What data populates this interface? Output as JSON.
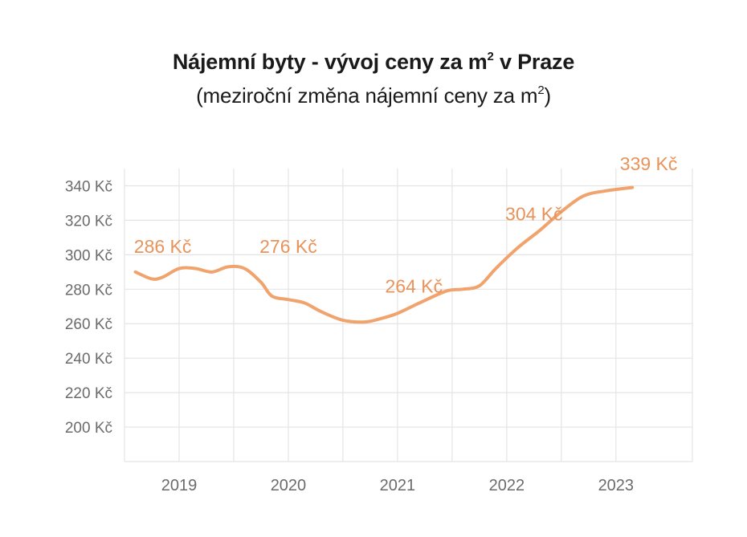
{
  "header": {
    "title_main": "Nájemní byty - vývoj ceny za m",
    "title_sup": "2",
    "title_tail": " v Praze",
    "subtitle_main": "(meziroční změna nájemní ceny za m",
    "subtitle_sup": "2",
    "subtitle_tail": ")"
  },
  "chart_data": {
    "type": "line",
    "title": "Nájemní byty - vývoj ceny za m² v Praze",
    "subtitle": "(meziroční změna nájemní ceny za m²)",
    "xlabel": "",
    "ylabel": "",
    "yticks": [
      "200 Kč",
      "220 Kč",
      "240 Kč",
      "260 Kč",
      "280 Kč",
      "300 Kč",
      "320 Kč",
      "340 Kč"
    ],
    "ylim": [
      180,
      350
    ],
    "xticks": [
      "2019",
      "2020",
      "2021",
      "2022",
      "2023"
    ],
    "xlim": [
      2018.5,
      2023.7
    ],
    "grid": true,
    "line_color": "#f0a36c",
    "label_color": "#e8935a",
    "series": [
      {
        "x": [
          2018.6,
          2018.75,
          2018.85,
          2019.0,
          2019.15,
          2019.3,
          2019.45,
          2019.6,
          2019.75,
          2019.85,
          2020.0,
          2020.15,
          2020.3,
          2020.5,
          2020.7,
          2020.85,
          2021.0,
          2021.2,
          2021.45,
          2021.6,
          2021.75,
          2021.9,
          2022.1,
          2022.3,
          2022.5,
          2022.7,
          2022.9,
          2023.15
        ],
        "y": [
          290,
          286,
          287,
          292,
          292,
          290,
          293,
          292,
          284,
          276,
          274,
          272,
          267,
          262,
          261,
          263,
          266,
          272,
          279,
          280,
          282,
          292,
          304,
          314,
          325,
          334,
          337,
          339
        ]
      }
    ],
    "data_labels": [
      {
        "text": "286 Kč",
        "x": 2018.85,
        "y": 301
      },
      {
        "text": "276 Kč",
        "x": 2020.0,
        "y": 301
      },
      {
        "text": "264 Kč",
        "x": 2021.15,
        "y": 278
      },
      {
        "text": "304 Kč",
        "x": 2022.25,
        "y": 320
      },
      {
        "text": "339 Kč",
        "x": 2023.3,
        "y": 349
      }
    ]
  }
}
